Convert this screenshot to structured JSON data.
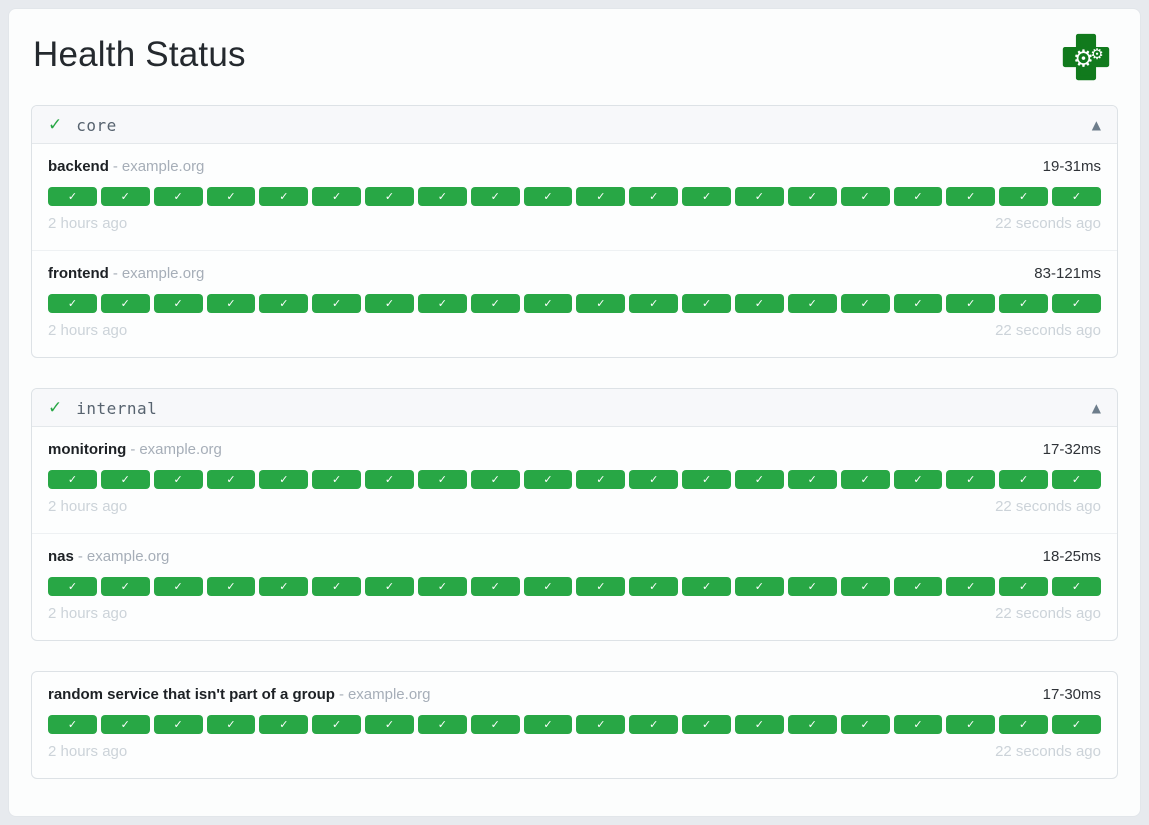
{
  "page": {
    "title": "Health Status"
  },
  "icons": {
    "logo": "health-cross-gears-icon",
    "healthy_check": "✓",
    "collapse": "▲",
    "status_up": "✓"
  },
  "colors": {
    "success_green": "#28a745",
    "logo_green": "#117a1d",
    "page_background": "#e7eaee",
    "card_background": "#fcfdfd"
  },
  "groups": [
    {
      "name": "core",
      "has_header": true,
      "status": "healthy",
      "collapsed": false,
      "endpoints": [
        {
          "name": "backend",
          "separator": "-",
          "host": "example.org",
          "response_time": "19-31ms",
          "history": {
            "status": "up",
            "icon": "✓",
            "count": 20
          },
          "oldest_result": "2 hours ago",
          "newest_result": "22 seconds ago"
        },
        {
          "name": "frontend",
          "separator": "-",
          "host": "example.org",
          "response_time": "83-121ms",
          "history": {
            "status": "up",
            "icon": "✓",
            "count": 20
          },
          "oldest_result": "2 hours ago",
          "newest_result": "22 seconds ago"
        }
      ]
    },
    {
      "name": "internal",
      "has_header": true,
      "status": "healthy",
      "collapsed": false,
      "endpoints": [
        {
          "name": "monitoring",
          "separator": "-",
          "host": "example.org",
          "response_time": "17-32ms",
          "history": {
            "status": "up",
            "icon": "✓",
            "count": 20
          },
          "oldest_result": "2 hours ago",
          "newest_result": "22 seconds ago"
        },
        {
          "name": "nas",
          "separator": "-",
          "host": "example.org",
          "response_time": "18-25ms",
          "history": {
            "status": "up",
            "icon": "✓",
            "count": 20
          },
          "oldest_result": "2 hours ago",
          "newest_result": "22 seconds ago"
        }
      ]
    },
    {
      "name": "",
      "has_header": false,
      "status": "healthy",
      "collapsed": false,
      "endpoints": [
        {
          "name": "random service that isn't part of a group",
          "separator": "-",
          "host": "example.org",
          "response_time": "17-30ms",
          "history": {
            "status": "up",
            "icon": "✓",
            "count": 20
          },
          "oldest_result": "2 hours ago",
          "newest_result": "22 seconds ago"
        }
      ]
    }
  ]
}
